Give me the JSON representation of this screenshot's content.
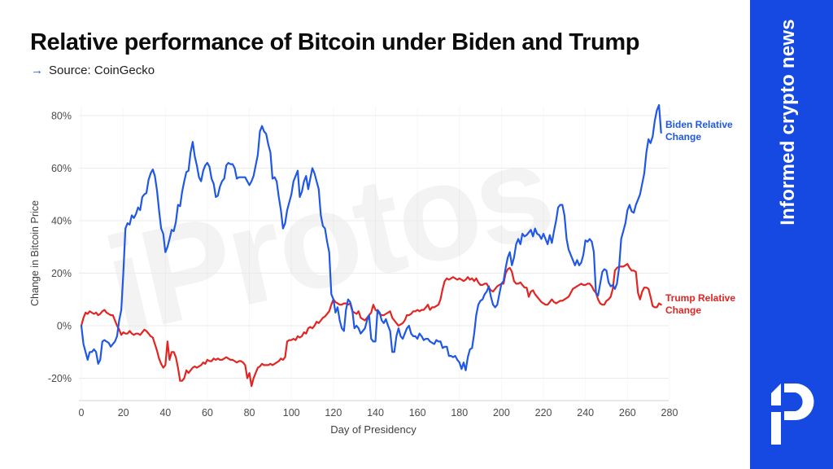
{
  "header": {
    "title": "Relative performance of Bitcoin under Biden and Trump",
    "source_arrow": "→",
    "source": "Source: CoinGecko"
  },
  "watermark": {
    "text": "iProtos"
  },
  "sidebar": {
    "tagline": "Informed crypto news",
    "background_color": "#1648e2",
    "logo": "protos-ip-logo"
  },
  "chart_data": {
    "type": "line",
    "title": "Relative performance of Bitcoin under Biden and Trump",
    "xlabel": "Day of Presidency",
    "ylabel": "Change in Bitcoin Price",
    "x_ticks": [
      0,
      20,
      40,
      60,
      80,
      100,
      120,
      140,
      160,
      180,
      200,
      220,
      240,
      260,
      280
    ],
    "y_ticks": [
      -20,
      0,
      20,
      40,
      60,
      80
    ],
    "y_tick_suffix": "%",
    "xlim": [
      0,
      281
    ],
    "ylim": [
      -28,
      88
    ],
    "grid": "horizontal-light",
    "legend_position": "right-of-line-ends",
    "x_start": 0,
    "x_step": 1,
    "series": [
      {
        "name": "Biden Relative Change",
        "color": "#1f57e7",
        "values": [
          0,
          -7,
          -10,
          -13,
          -10,
          -10,
          -9,
          -10,
          -14.5,
          -13,
          -6,
          -5.5,
          -6,
          -6.5,
          -8,
          -7,
          -6,
          -4,
          2,
          6,
          20,
          37,
          39,
          38.5,
          42,
          41,
          42.5,
          45,
          44,
          49,
          50,
          50.5,
          55.5,
          58,
          59.5,
          57,
          51.5,
          44,
          37,
          35,
          28,
          30,
          33,
          36.5,
          36,
          39.5,
          46,
          45.5,
          51,
          55,
          58.5,
          59,
          66,
          70,
          64.5,
          61,
          56.5,
          55,
          59,
          61,
          62,
          60.5,
          56,
          54,
          49,
          49.5,
          53,
          55,
          56,
          61,
          62,
          61.5,
          61.5,
          60,
          56,
          56.5,
          56.5,
          56.5,
          56.5,
          55,
          53.5,
          55,
          57,
          61,
          65,
          74,
          76,
          74,
          73,
          69,
          66,
          56,
          56.5,
          55,
          49,
          44,
          37,
          39,
          44,
          47,
          50,
          55,
          57,
          59,
          49,
          51,
          55,
          57,
          52,
          56,
          60,
          58,
          55,
          52,
          42,
          38,
          37,
          32,
          28,
          12,
          10,
          5,
          7,
          2,
          -1,
          -2,
          6,
          10,
          9,
          6,
          -1,
          0,
          -1,
          -3,
          -2,
          -1,
          2,
          4,
          -5,
          -6,
          -6,
          6,
          5,
          2,
          1,
          2.5,
          0,
          -2,
          -10,
          -10,
          -4,
          -1,
          -4,
          -5,
          -3,
          -1,
          0,
          -3,
          -4,
          -4,
          -5,
          -3,
          -4,
          -5.5,
          -5,
          -5,
          -6,
          -6.5,
          -7,
          -5.5,
          -6,
          -6,
          -8.5,
          -8,
          -8,
          -11.5,
          -11.5,
          -12,
          -11.5,
          -13,
          -14,
          -16.5,
          -14,
          -17,
          -12,
          -9,
          -8.5,
          -3,
          4,
          8,
          9.5,
          10,
          12,
          13,
          15,
          11,
          8,
          7,
          8,
          12,
          16,
          17,
          22,
          26,
          28,
          23,
          26,
          31,
          33,
          31,
          35,
          34,
          34.5,
          35.5,
          36.5,
          34,
          37,
          35,
          34.5,
          33,
          35,
          33,
          31,
          34.5,
          31.5,
          36,
          40,
          45,
          46,
          46,
          42,
          33,
          29,
          27,
          25,
          23,
          25,
          23,
          24,
          27,
          32.5,
          32,
          33,
          32,
          28,
          12.5,
          11.5,
          16,
          20.5,
          21.5,
          21,
          16.5,
          15,
          15.5,
          14,
          16,
          22,
          33,
          36,
          39,
          44,
          46,
          43.5,
          43,
          46,
          48,
          50,
          54,
          58,
          66,
          71,
          69.5,
          72,
          78,
          82,
          84,
          73.5
        ]
      },
      {
        "name": "Trump Relative Change",
        "color": "#e22522",
        "values": [
          0,
          3,
          5,
          4.5,
          5.5,
          5,
          4.5,
          5,
          4,
          4.5,
          5.5,
          6,
          5,
          4.5,
          4,
          4,
          2,
          0,
          -1.5,
          -3.5,
          -2.5,
          -3,
          -3,
          -2,
          -3,
          -3.5,
          -3,
          -3,
          -3.5,
          -2.5,
          -1.5,
          -2,
          -3,
          -4,
          -4.5,
          -7,
          -9.5,
          -12.5,
          -14.5,
          -16,
          -15,
          -6,
          -13,
          -10,
          -10,
          -12,
          -16,
          -21,
          -21,
          -20,
          -17,
          -18,
          -17,
          -16,
          -15.5,
          -16,
          -15.5,
          -15,
          -14,
          -14.5,
          -13,
          -13.5,
          -13.5,
          -12.5,
          -13,
          -12.5,
          -13,
          -13,
          -12.5,
          -12,
          -12.5,
          -13,
          -13,
          -13.5,
          -14,
          -13.5,
          -13.5,
          -14,
          -15,
          -20,
          -18,
          -23,
          -20,
          -18,
          -16,
          -15.5,
          -14.5,
          -15,
          -15,
          -15,
          -14.5,
          -15,
          -14.5,
          -14,
          -13.5,
          -12.5,
          -13,
          -12,
          -6,
          -5.5,
          -5.5,
          -5,
          -5.5,
          -4,
          -4.5,
          -4,
          -2.5,
          -3,
          -1,
          -0.5,
          -1,
          0,
          1.5,
          1,
          2,
          3,
          3.5,
          4.5,
          5.5,
          8,
          10,
          9,
          8.5,
          8,
          8,
          8.5,
          8.5,
          8,
          8.5,
          5.5,
          5,
          4.5,
          5.5,
          3,
          2.5,
          2,
          3,
          4,
          5,
          8,
          6,
          5.5,
          4.5,
          4,
          4,
          4.5,
          5,
          5.5,
          3,
          2,
          1,
          0,
          0.5,
          1,
          2,
          4,
          4,
          4.5,
          5.5,
          5.5,
          6,
          5.5,
          6,
          6,
          7,
          8,
          6,
          7,
          7,
          7.5,
          8,
          10,
          14,
          17,
          18,
          17.5,
          18,
          18.5,
          18,
          17.5,
          18,
          17.5,
          17,
          17.5,
          18.5,
          17.5,
          18,
          17,
          18,
          16.5,
          15.5,
          15.5,
          16,
          16,
          14.5,
          13.5,
          13,
          14,
          15,
          15.5,
          16,
          16,
          20,
          21.5,
          22,
          20.5,
          17,
          16,
          16,
          16.5,
          15.5,
          14.5,
          14.5,
          11,
          13,
          13.5,
          12,
          11,
          10,
          9,
          8.5,
          8,
          8,
          9,
          10,
          9,
          8.5,
          9,
          9.5,
          9.5,
          10,
          10.5,
          11,
          12.5,
          14,
          14.5,
          15,
          15.5,
          16,
          15.5,
          15.5,
          16,
          16,
          15,
          13.5,
          12.5,
          10,
          8.5,
          8,
          8,
          9.5,
          10,
          11,
          14,
          21,
          22,
          22.5,
          22.5,
          22.5,
          23,
          23.5,
          22,
          21,
          21,
          20.5,
          12.5,
          10,
          13,
          14.5,
          14.5,
          14,
          11,
          7.5,
          7,
          7,
          8.5,
          8
        ]
      }
    ]
  }
}
